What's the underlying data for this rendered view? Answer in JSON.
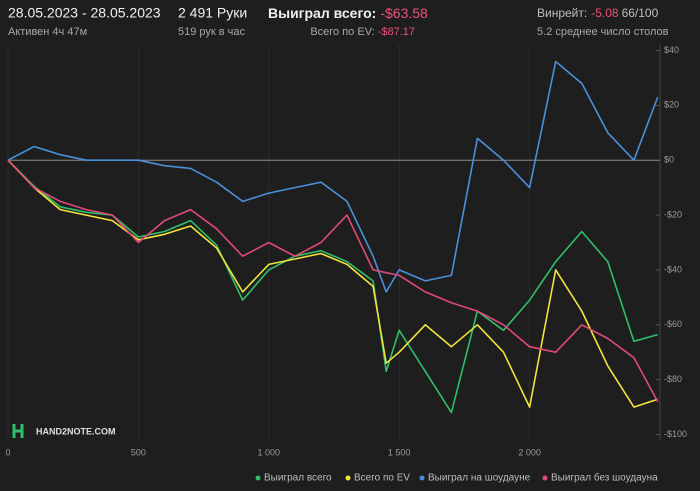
{
  "header": {
    "date_range": "28.05.2023 - 28.05.2023",
    "active": "Активен 4ч 47м",
    "hands": "2 491 Руки",
    "hands_per_hour": "519 рук в час",
    "won_label": "Выиграл всего:",
    "won_value": "-$63.58",
    "ev_label": "Всего по EV:",
    "ev_value": "-$87.17",
    "winrate_label": "Винрейт:",
    "winrate_value": "-5.08",
    "winrate_sample": "66/100",
    "tables": "5.2 среднее число столов"
  },
  "logo": "HAND2NOTE.COM",
  "chart_data": {
    "type": "line",
    "x": [
      0,
      100,
      200,
      300,
      400,
      500,
      600,
      700,
      800,
      900,
      1000,
      1100,
      1200,
      1300,
      1400,
      1450,
      1500,
      1600,
      1700,
      1800,
      1900,
      2000,
      2100,
      2200,
      2300,
      2400,
      2491
    ],
    "xlim": [
      0,
      2500
    ],
    "xticks": [
      0,
      500,
      {
        "value": 1000,
        "label": "1 000"
      },
      {
        "value": 1500,
        "label": "1 500"
      },
      {
        "value": 2000,
        "label": "2 000"
      }
    ],
    "ylim": [
      -102,
      42
    ],
    "yticks": [
      {
        "value": 40,
        "label": "$40"
      },
      {
        "value": 20,
        "label": "$20"
      },
      {
        "value": 0,
        "label": "$0"
      },
      {
        "value": -20,
        "label": "-$20"
      },
      {
        "value": -40,
        "label": "-$40"
      },
      {
        "value": -60,
        "label": "-$60"
      },
      {
        "value": -80,
        "label": "-$80"
      },
      {
        "value": -100,
        "label": "-$100"
      }
    ],
    "grid": true,
    "legend": "bottom",
    "series": [
      {
        "name": "Выиграл всего",
        "color": "#2fbf6a",
        "values": [
          0,
          -9.5,
          -17,
          -19,
          -20,
          -28,
          -26,
          -22,
          -31,
          -51,
          -40,
          -35,
          -33,
          -37,
          -44,
          -77,
          -62,
          -77,
          -92,
          -55,
          -62,
          -51,
          -37,
          -26,
          -37,
          -66,
          -63.58
        ]
      },
      {
        "name": "Всего по EV",
        "color": "#f2e33c",
        "values": [
          0,
          -10,
          -18,
          -20,
          -22,
          -29,
          -27,
          -24,
          -32,
          -48,
          -38,
          -36,
          -34,
          -38,
          -46,
          -74,
          -70,
          -60,
          -68,
          -60,
          -70,
          -90,
          -40,
          -55,
          -75,
          -90,
          -87.17
        ]
      },
      {
        "name": "Выиграл на шоудауне",
        "color": "#4a90d9",
        "values": [
          0,
          5,
          2,
          0,
          0,
          0,
          -2,
          -3,
          -8,
          -15,
          -12,
          -10,
          -8,
          -15,
          -35,
          -48,
          -40,
          -44,
          -42,
          8,
          0,
          -10,
          36,
          28,
          10,
          0,
          23
        ]
      },
      {
        "name": "Выиграл без шоудауна",
        "color": "#e04a78",
        "values": [
          0,
          -10,
          -15,
          -18,
          -20,
          -30,
          -22,
          -18,
          -25,
          -35,
          -30,
          -35,
          -30,
          -20,
          -40,
          -41,
          -42,
          -48,
          -52,
          -55,
          -60,
          -68,
          -70,
          -60,
          -65,
          -72,
          -88
        ]
      }
    ]
  }
}
